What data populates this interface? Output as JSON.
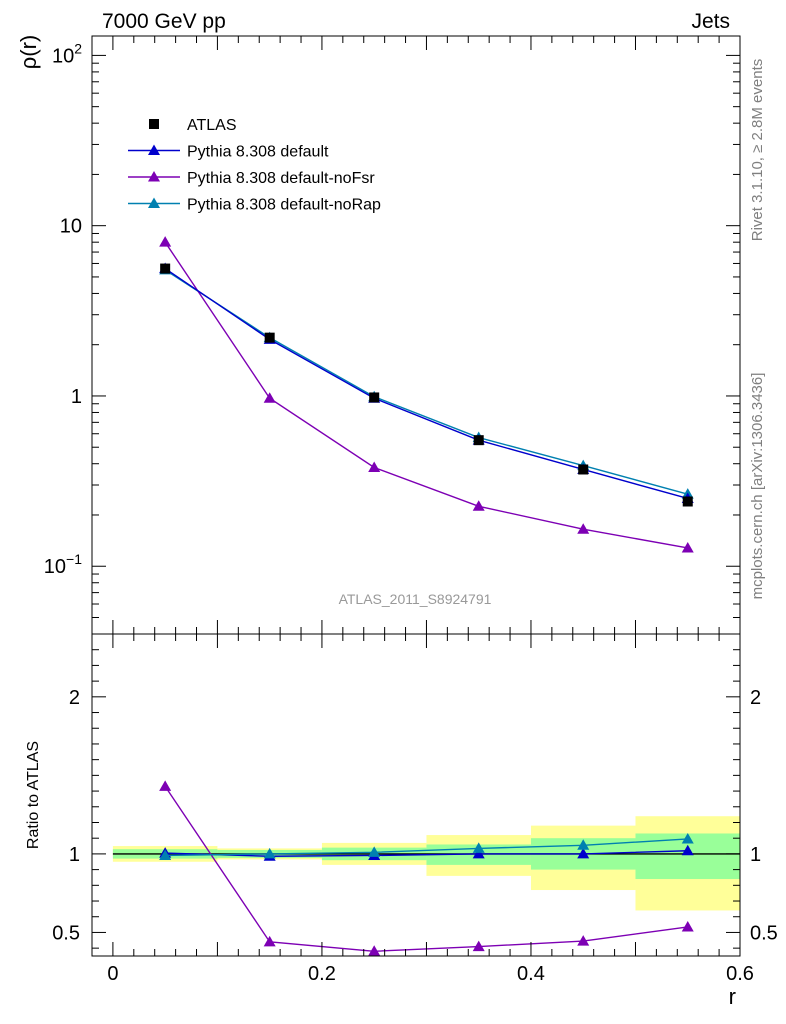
{
  "header": {
    "left_label": "7000 GeV pp",
    "right_label": "Jets"
  },
  "side_text": {
    "rivet": "Rivet 3.1.10, ≥ 2.8M events",
    "mcplots": "mcplots.cern.ch [arXiv:1306.3436]"
  },
  "analysis_label": "ATLAS_2011_S8924791",
  "colors": {
    "atlas": "#000000",
    "default": "#0000cc",
    "noFsr": "#7d00b4",
    "noRap": "#0080b0",
    "band_outer": "#ffff99",
    "band_inner": "#99ff99"
  },
  "chart_data": [
    {
      "type": "line",
      "panel": "main",
      "ylabel": "ρ(r)",
      "yscale": "log",
      "ylim": [
        0.04,
        130
      ],
      "xlim": [
        -0.02,
        0.6
      ],
      "yticks": [
        {
          "v": 0.1,
          "base": "10",
          "exp": "−1"
        },
        {
          "v": 1,
          "base": "1",
          "exp": ""
        },
        {
          "v": 10,
          "base": "10",
          "exp": ""
        },
        {
          "v": 100,
          "base": "10",
          "exp": "2"
        }
      ],
      "legend": [
        "ATLAS",
        "Pythia 8.308 default",
        "Pythia 8.308 default-noFsr",
        "Pythia 8.308 default-noRap"
      ],
      "legend_position": "top-left",
      "x": [
        0.05,
        0.15,
        0.25,
        0.35,
        0.45,
        0.55
      ],
      "series": [
        {
          "name": "ATLAS",
          "marker": "square",
          "values": [
            5.6,
            2.2,
            0.98,
            0.55,
            0.37,
            0.24
          ]
        },
        {
          "name": "Pythia 8.308 default",
          "marker": "triangle",
          "values": [
            5.6,
            2.15,
            0.97,
            0.55,
            0.37,
            0.25
          ]
        },
        {
          "name": "Pythia 8.308 default-noFsr",
          "marker": "triangle",
          "values": [
            8.0,
            0.97,
            0.38,
            0.225,
            0.165,
            0.128
          ]
        },
        {
          "name": "Pythia 8.308 default-noRap",
          "marker": "triangle",
          "values": [
            5.5,
            2.2,
            0.99,
            0.57,
            0.39,
            0.265
          ]
        }
      ]
    },
    {
      "type": "line",
      "panel": "ratio",
      "ylabel": "Ratio to ATLAS",
      "xlabel": "r",
      "ylim": [
        0.35,
        2.4
      ],
      "xlim": [
        -0.02,
        0.6
      ],
      "yticks": [
        {
          "v": 0.5,
          "label": "0.5"
        },
        {
          "v": 1,
          "label": "1"
        },
        {
          "v": 2,
          "label": "2"
        }
      ],
      "xticks": [
        {
          "v": 0,
          "label": "0"
        },
        {
          "v": 0.2,
          "label": "0.2"
        },
        {
          "v": 0.4,
          "label": "0.4"
        },
        {
          "v": 0.6,
          "label": "0.6"
        }
      ],
      "x": [
        0.05,
        0.15,
        0.25,
        0.35,
        0.45,
        0.55
      ],
      "bins": [
        [
          0.0,
          0.1
        ],
        [
          0.1,
          0.2
        ],
        [
          0.2,
          0.3
        ],
        [
          0.3,
          0.4
        ],
        [
          0.4,
          0.5
        ],
        [
          0.5,
          0.6
        ]
      ],
      "band_outer": [
        [
          0.95,
          1.05
        ],
        [
          0.965,
          1.035
        ],
        [
          0.93,
          1.07
        ],
        [
          0.86,
          1.12
        ],
        [
          0.77,
          1.18
        ],
        [
          0.64,
          1.24
        ]
      ],
      "band_inner": [
        [
          0.97,
          1.03
        ],
        [
          0.975,
          1.025
        ],
        [
          0.96,
          1.04
        ],
        [
          0.93,
          1.06
        ],
        [
          0.9,
          1.1
        ],
        [
          0.84,
          1.13
        ]
      ],
      "series": [
        {
          "name": "Pythia 8.308 default",
          "values": [
            1.005,
            0.985,
            0.99,
            1.0,
            1.0,
            1.02
          ]
        },
        {
          "name": "Pythia 8.308 default-noFsr",
          "values": [
            1.43,
            0.44,
            0.38,
            0.41,
            0.445,
            0.535
          ]
        },
        {
          "name": "Pythia 8.308 default-noRap",
          "values": [
            0.99,
            1.0,
            1.01,
            1.035,
            1.055,
            1.095
          ]
        }
      ]
    }
  ]
}
